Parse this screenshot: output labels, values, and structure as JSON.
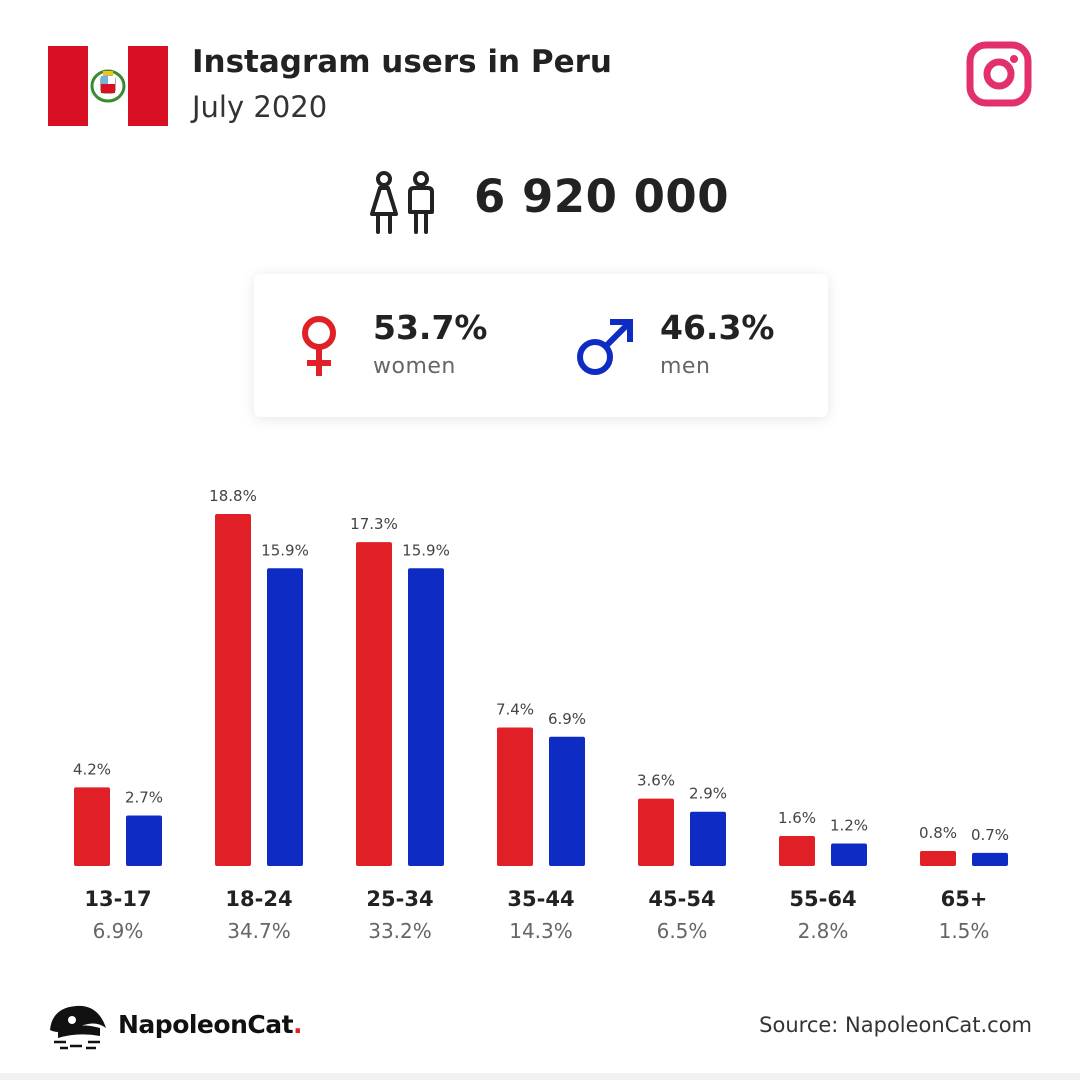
{
  "header": {
    "title": "Instagram users in Peru",
    "subtitle": "July 2020"
  },
  "total_users": "6 920 000",
  "gender": {
    "women_pct": "53.7%",
    "women_label": "women",
    "men_pct": "46.3%",
    "men_label": "men"
  },
  "colors": {
    "women": "#e01f26",
    "men": "#0e2bc4",
    "instagram": "#e1306c",
    "flag_red": "#d91023"
  },
  "icons": [
    "peru-flag-icon",
    "instagram-icon",
    "people-icon",
    "female-icon",
    "male-icon",
    "napoleoncat-logo-icon"
  ],
  "chart_data": {
    "type": "bar",
    "categories": [
      "13-17",
      "18-24",
      "25-34",
      "35-44",
      "45-54",
      "55-64",
      "65+"
    ],
    "category_totals": [
      "6.9%",
      "34.7%",
      "33.2%",
      "14.3%",
      "6.5%",
      "2.8%",
      "1.5%"
    ],
    "series": [
      {
        "values": [
          4.2,
          18.8,
          17.3,
          7.4,
          3.6,
          1.6,
          0.8
        ],
        "labels": [
          "4.2%",
          "18.8%",
          "17.3%",
          "7.4%",
          "3.6%",
          "1.6%",
          "0.8%"
        ]
      },
      {
        "values": [
          2.7,
          15.9,
          15.9,
          6.9,
          2.9,
          1.2,
          0.7
        ],
        "labels": [
          "2.7%",
          "15.9%",
          "15.9%",
          "6.9%",
          "2.9%",
          "1.2%",
          "0.7%"
        ]
      }
    ],
    "ylim": [
      0,
      18.8
    ],
    "grid": false,
    "legend": "none"
  },
  "footer": {
    "brand_name": "NapoleonCat",
    "brand_dot": ".",
    "source": "Source: NapoleonCat.com"
  }
}
